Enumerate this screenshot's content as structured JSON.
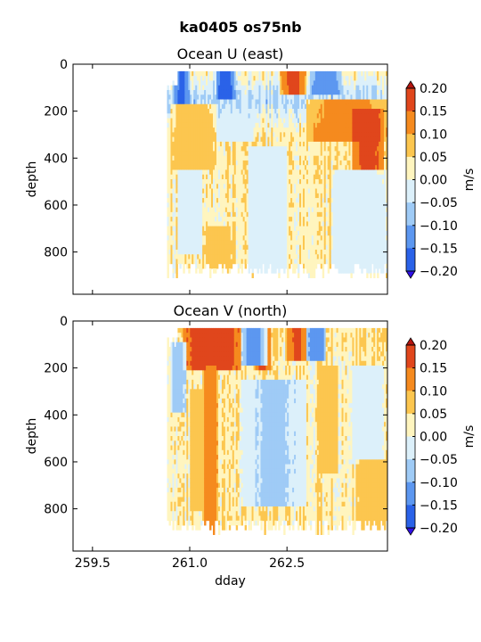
{
  "figure_title": "ka0405 os75nb",
  "chart_data": [
    {
      "type": "heatmap",
      "title": "Ocean U (east)",
      "xlabel": "",
      "ylabel": "depth",
      "xlim": [
        259.2,
        264.05
      ],
      "ylim": [
        980,
        0
      ],
      "xticks": [
        259.5,
        261.0,
        262.5
      ],
      "xticklabels": [
        "",
        "",
        ""
      ],
      "yticks": [
        0,
        200,
        400,
        600,
        800
      ],
      "yticklabels": [
        "0",
        "200",
        "400",
        "600",
        "800"
      ],
      "data_start_dday": 260.65,
      "data_end_dday": 264.05,
      "start_depth_top": 30,
      "max_depth": 910,
      "colorbar": {
        "label": "m/s",
        "levels": [
          -0.2,
          -0.15,
          -0.1,
          -0.05,
          0.0,
          0.05,
          0.1,
          0.15,
          0.2
        ],
        "ticklabels": [
          "0.20",
          "0.15",
          "0.10",
          "0.05",
          "0.00",
          "−0.05",
          "−0.10",
          "−0.15",
          "−0.20"
        ],
        "colors": [
          "#3010e6",
          "#2a62e8",
          "#5c97f0",
          "#9fcbf6",
          "#dcf0fa",
          "#fff5bf",
          "#fcc64f",
          "#f58a1e",
          "#e0461c",
          "#b4150f"
        ],
        "extend": "both"
      },
      "profile": [
        {
          "depth": 40,
          "value": 0.02
        },
        {
          "depth": 150,
          "value": -0.06
        },
        {
          "depth": 300,
          "value": 0.04
        },
        {
          "depth": 450,
          "value": 0.04
        },
        {
          "depth": 600,
          "value": 0.03
        },
        {
          "depth": 800,
          "value": 0.03
        }
      ],
      "features": [
        {
          "t0": 260.75,
          "t1": 261.0,
          "d0": 40,
          "d1": 160,
          "value": -0.16
        },
        {
          "t0": 261.4,
          "t1": 261.7,
          "d0": 40,
          "d1": 150,
          "value": -0.18
        },
        {
          "t0": 262.4,
          "t1": 262.8,
          "d0": 40,
          "d1": 130,
          "value": 0.17
        },
        {
          "t0": 262.85,
          "t1": 263.35,
          "d0": 40,
          "d1": 130,
          "value": -0.14
        },
        {
          "t0": 262.8,
          "t1": 264.05,
          "d0": 150,
          "d1": 330,
          "value": 0.13
        },
        {
          "t0": 263.5,
          "t1": 264.0,
          "d0": 200,
          "d1": 460,
          "value": 0.17
        },
        {
          "t0": 260.7,
          "t1": 261.4,
          "d0": 180,
          "d1": 440,
          "value": 0.08
        },
        {
          "t0": 261.4,
          "t1": 262.0,
          "d0": 200,
          "d1": 330,
          "value": -0.05
        },
        {
          "t0": 261.9,
          "t1": 262.5,
          "d0": 350,
          "d1": 880,
          "value": -0.04
        },
        {
          "t0": 263.2,
          "t1": 264.05,
          "d0": 450,
          "d1": 880,
          "value": -0.04
        },
        {
          "t0": 261.2,
          "t1": 261.7,
          "d0": 700,
          "d1": 860,
          "value": 0.07
        },
        {
          "t0": 260.8,
          "t1": 261.2,
          "d0": 450,
          "d1": 800,
          "value": -0.03
        }
      ],
      "noise": 0.045,
      "seed": 7
    },
    {
      "type": "heatmap",
      "title": "Ocean V (north)",
      "xlabel": "dday",
      "ylabel": "depth",
      "xlim": [
        259.2,
        264.05
      ],
      "ylim": [
        980,
        0
      ],
      "xticks": [
        259.5,
        261.0,
        262.5
      ],
      "xticklabels": [
        "259.5",
        "261.0",
        "262.5"
      ],
      "yticks": [
        0,
        200,
        400,
        600,
        800
      ],
      "yticklabels": [
        "0",
        "200",
        "400",
        "600",
        "800"
      ],
      "data_start_dday": 260.65,
      "data_end_dday": 264.05,
      "start_depth_top": 30,
      "max_depth": 910,
      "colorbar": {
        "label": "m/s",
        "levels": [
          -0.2,
          -0.15,
          -0.1,
          -0.05,
          0.0,
          0.05,
          0.1,
          0.15,
          0.2
        ],
        "ticklabels": [
          "0.20",
          "0.15",
          "0.10",
          "0.05",
          "0.00",
          "−0.05",
          "−0.10",
          "−0.15",
          "−0.20"
        ],
        "colors": [
          "#3010e6",
          "#2a62e8",
          "#5c97f0",
          "#9fcbf6",
          "#dcf0fa",
          "#fff5bf",
          "#fcc64f",
          "#f58a1e",
          "#e0461c",
          "#b4150f"
        ],
        "extend": "both"
      },
      "profile": [
        {
          "depth": 40,
          "value": 0.05
        },
        {
          "depth": 200,
          "value": 0.03
        },
        {
          "depth": 400,
          "value": 0.04
        },
        {
          "depth": 600,
          "value": 0.03
        },
        {
          "depth": 800,
          "value": 0.04
        }
      ],
      "features": [
        {
          "t0": 260.9,
          "t1": 261.8,
          "d0": 40,
          "d1": 200,
          "value": 0.19
        },
        {
          "t0": 261.2,
          "t1": 261.45,
          "d0": 200,
          "d1": 900,
          "value": 0.14
        },
        {
          "t0": 262.0,
          "t1": 262.25,
          "d0": 40,
          "d1": 200,
          "value": 0.16
        },
        {
          "t0": 261.8,
          "t1": 262.2,
          "d0": 40,
          "d1": 180,
          "value": -0.13
        },
        {
          "t0": 262.5,
          "t1": 262.8,
          "d0": 40,
          "d1": 160,
          "value": 0.16
        },
        {
          "t0": 262.8,
          "t1": 263.1,
          "d0": 40,
          "d1": 160,
          "value": -0.15
        },
        {
          "t0": 260.7,
          "t1": 260.95,
          "d0": 100,
          "d1": 380,
          "value": -0.08
        },
        {
          "t0": 261.8,
          "t1": 262.8,
          "d0": 250,
          "d1": 780,
          "value": -0.06
        },
        {
          "t0": 263.0,
          "t1": 263.3,
          "d0": 200,
          "d1": 650,
          "value": 0.09
        },
        {
          "t0": 263.5,
          "t1": 264.0,
          "d0": 200,
          "d1": 600,
          "value": -0.05
        },
        {
          "t0": 263.55,
          "t1": 264.05,
          "d0": 600,
          "d1": 880,
          "value": 0.08
        },
        {
          "t0": 261.0,
          "t1": 261.2,
          "d0": 300,
          "d1": 800,
          "value": 0.09
        }
      ],
      "noise": 0.05,
      "seed": 21
    }
  ]
}
